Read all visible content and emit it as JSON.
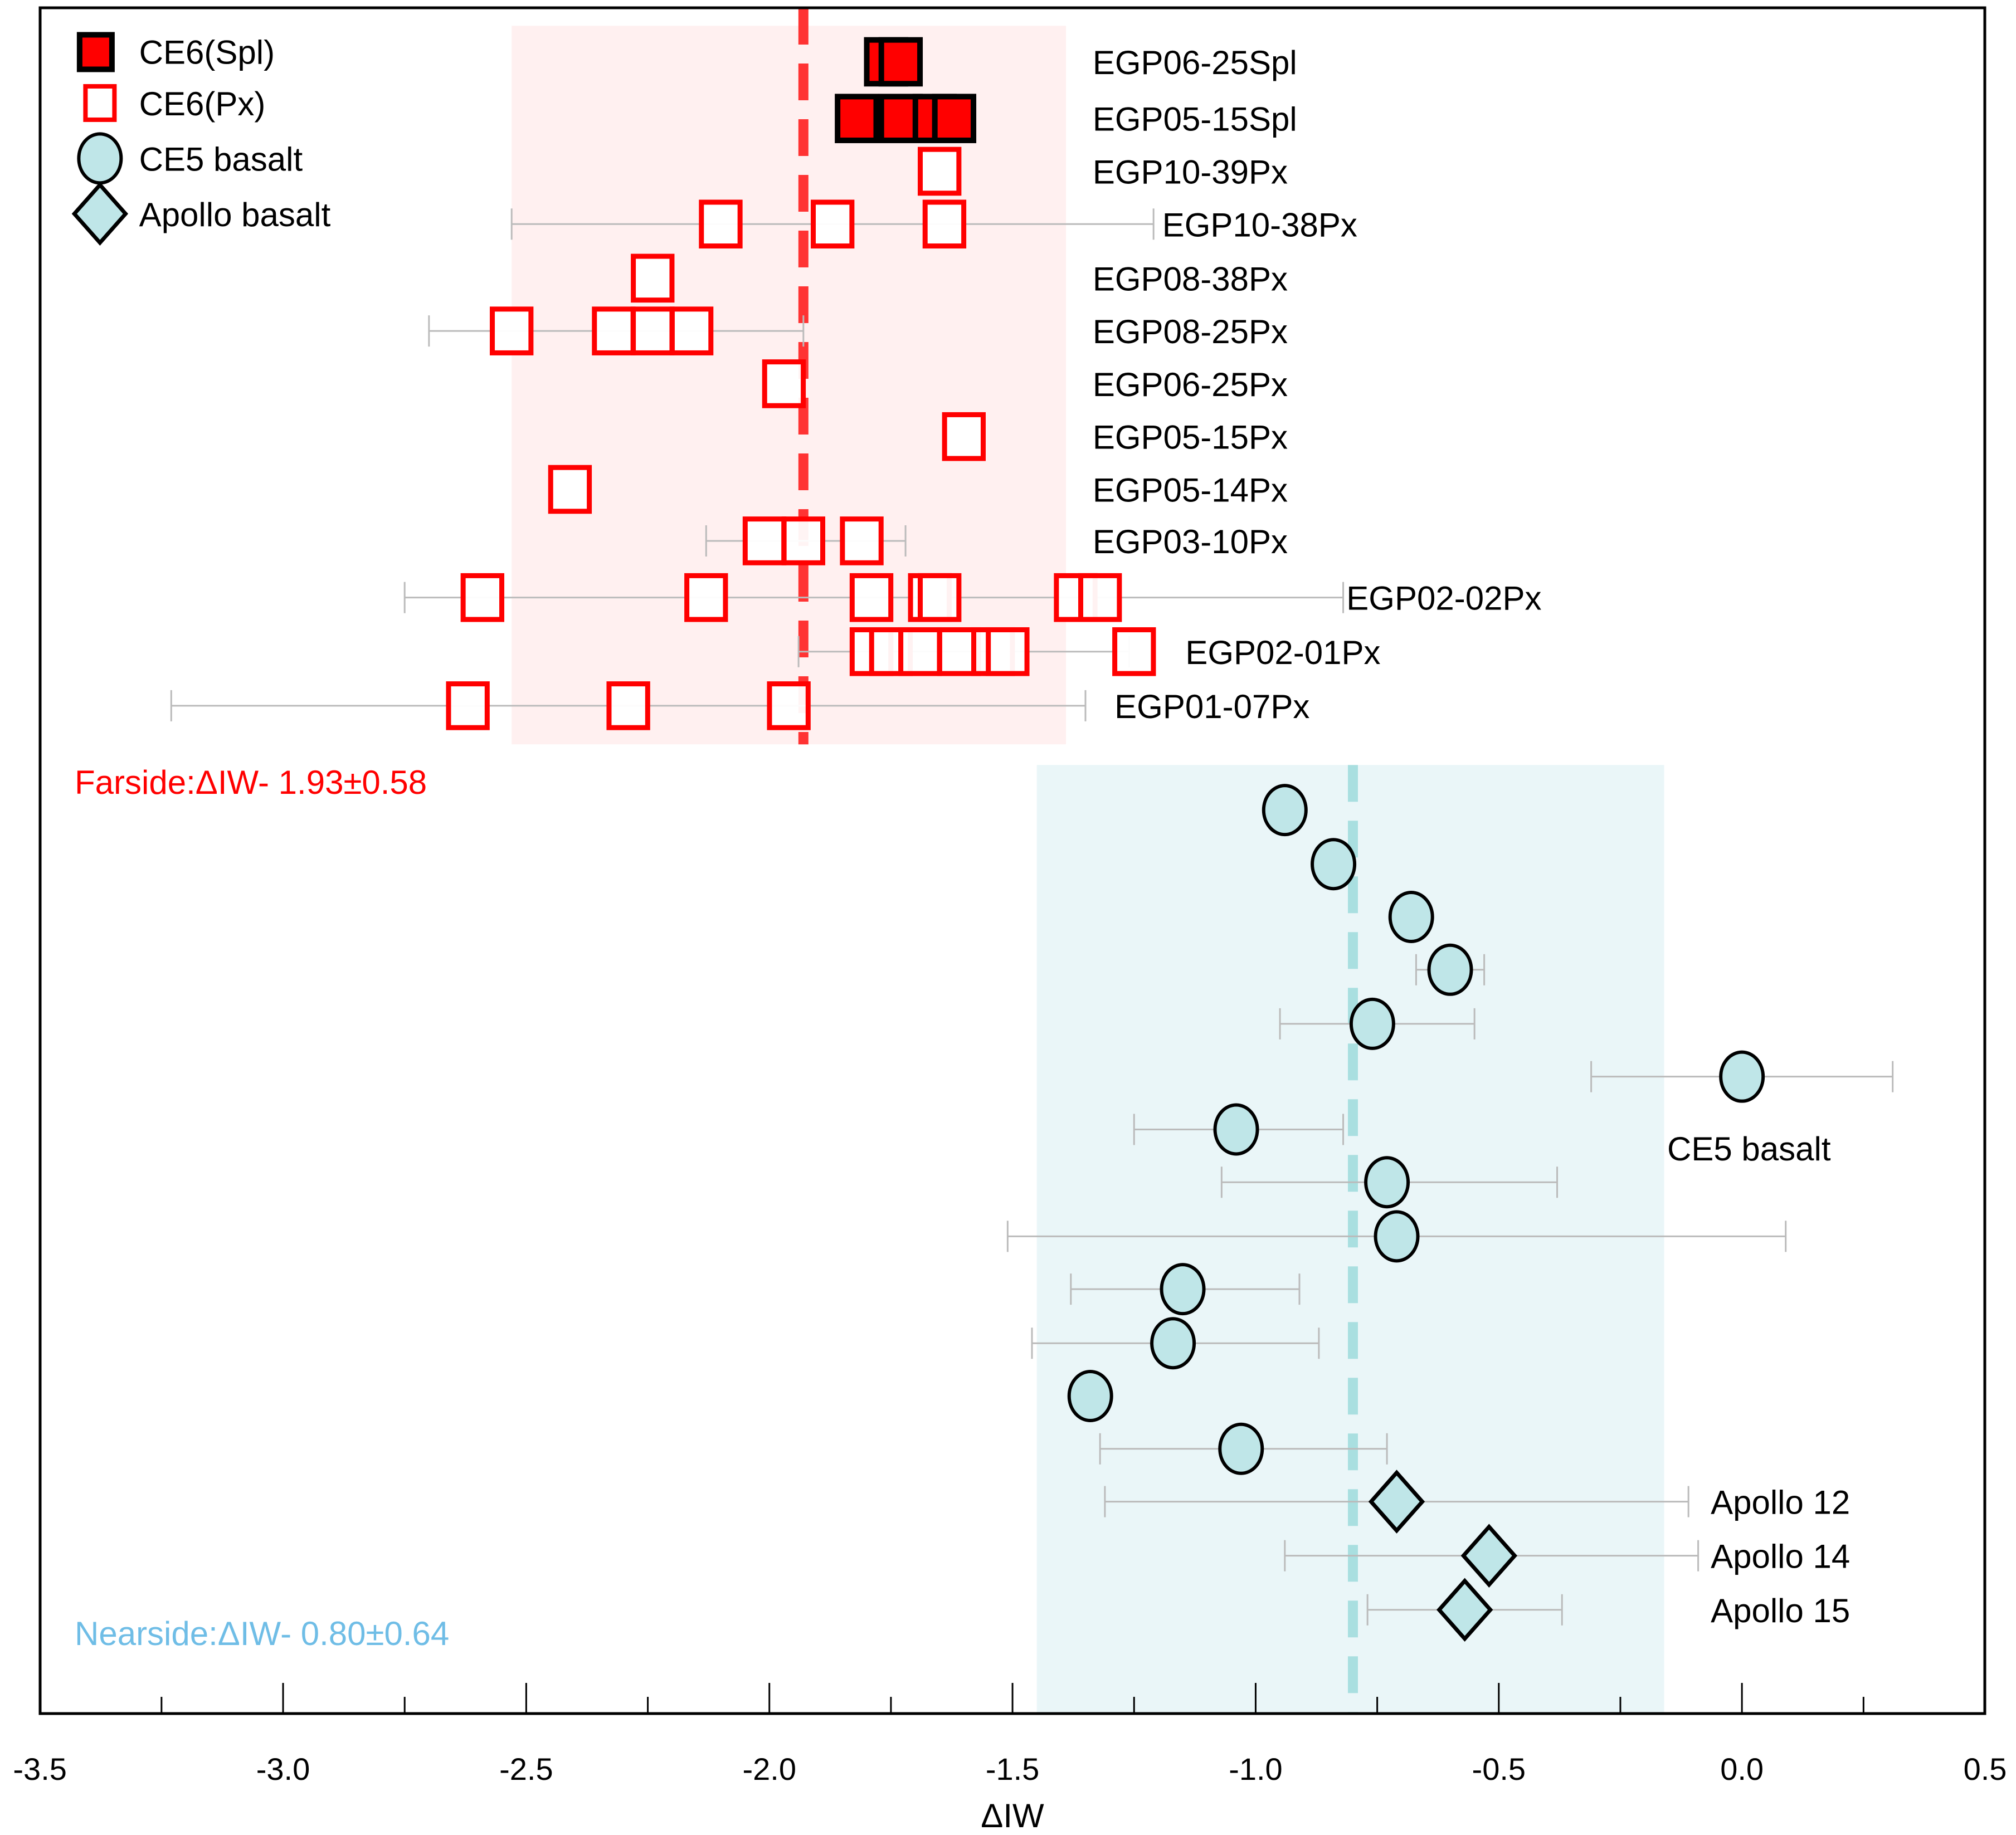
{
  "chart_data": {
    "type": "scatter",
    "title": "",
    "xlabel": "ΔIW",
    "ylabel": "",
    "xlim": [
      -3.5,
      0.5
    ],
    "x_ticks": [
      "-3.5",
      "-3.0",
      "-2.5",
      "-2.0",
      "-1.5",
      "-1.0",
      "-0.5",
      "0.0",
      "0.5"
    ],
    "x_tick_values": [
      -3.5,
      -3.0,
      -2.5,
      -2.0,
      -1.5,
      -1.0,
      -0.5,
      0.0,
      0.5
    ],
    "grid": false,
    "legend_position": "top-left",
    "legend": [
      {
        "label": "CE6(Spl)",
        "marker": "square-filled"
      },
      {
        "label": "CE6(Px)",
        "marker": "square-open"
      },
      {
        "label": "CE5 basalt",
        "marker": "circle"
      },
      {
        "label": "Apollo basalt",
        "marker": "diamond"
      }
    ],
    "colors": {
      "spl_fill": "#ff0000",
      "px_edge": "#ff0000",
      "basalt_fill": "#bfe6e8",
      "farside_band": "#fff0f0",
      "nearside_band": "#eaf6f8",
      "farside_mean_line": "#ff3333",
      "nearside_mean_line": "#a9dfe0",
      "farside_text": "#ff0000",
      "nearside_text": "#6fbde6",
      "errorbar": "#bbbbbb"
    },
    "farside": {
      "label": "Farside:ΔIW- 1.93±0.58",
      "mean": -1.93,
      "band": [
        -2.53,
        -1.39
      ]
    },
    "nearside": {
      "label": "Nearside:ΔIW- 0.80±0.64",
      "mean": -0.8,
      "band": [
        -1.45,
        -0.16
      ]
    },
    "ce6_series": [
      {
        "name": "EGP06-25Spl",
        "kind": "spl",
        "values": [
          -1.76,
          -1.73
        ],
        "err": [
          -1.79,
          -1.7
        ]
      },
      {
        "name": "EGP05-15Spl",
        "kind": "spl",
        "values": [
          -1.82,
          -1.73,
          -1.66,
          -1.62
        ],
        "err": [
          -1.84,
          -1.6
        ]
      },
      {
        "name": "EGP10-39Px",
        "kind": "px",
        "values": [
          -1.65
        ],
        "err": null
      },
      {
        "name": "EGP10-38Px",
        "kind": "px",
        "values": [
          -2.1,
          -1.87,
          -1.64
        ],
        "err": [
          -2.53,
          -1.21
        ]
      },
      {
        "name": "EGP08-38Px",
        "kind": "px",
        "values": [
          -2.24
        ],
        "err": null
      },
      {
        "name": "EGP08-25Px",
        "kind": "px",
        "values": [
          -2.53,
          -2.32,
          -2.24,
          -2.16
        ],
        "err": [
          -2.7,
          -1.93
        ]
      },
      {
        "name": "EGP06-25Px",
        "kind": "px",
        "values": [
          -1.97
        ],
        "err": null
      },
      {
        "name": "EGP05-15Px",
        "kind": "px",
        "values": [
          -1.6
        ],
        "err": null
      },
      {
        "name": "EGP05-14Px",
        "kind": "px",
        "values": [
          -2.41
        ],
        "err": null
      },
      {
        "name": "EGP03-10Px",
        "kind": "px",
        "values": [
          -2.01,
          -1.93,
          -1.81
        ],
        "err": [
          -2.13,
          -1.72
        ]
      },
      {
        "name": "EGP02-02Px",
        "kind": "px",
        "values": [
          -2.59,
          -2.13,
          -1.79,
          -1.67,
          -1.65,
          -1.37,
          -1.32
        ],
        "err": [
          -2.75,
          -0.82
        ]
      },
      {
        "name": "EGP02-01Px",
        "kind": "px",
        "values": [
          -1.79,
          -1.75,
          -1.69,
          -1.61,
          -1.54,
          -1.51,
          -1.25
        ],
        "err": [
          -1.94,
          -1.26
        ]
      },
      {
        "name": "EGP01-07Px",
        "kind": "px",
        "values": [
          -2.62,
          -2.29,
          -1.96
        ],
        "err": [
          -3.23,
          -1.35
        ]
      }
    ],
    "ce5_basalt": [
      {
        "value": -0.94,
        "err": [
          -0.96,
          -0.92
        ]
      },
      {
        "value": -0.84,
        "err": [
          -0.86,
          -0.82
        ]
      },
      {
        "value": -0.68,
        "err": [
          -0.7,
          -0.66
        ]
      },
      {
        "value": -0.6,
        "err": [
          -0.67,
          -0.53
        ]
      },
      {
        "value": -0.76,
        "err": [
          -0.95,
          -0.55
        ]
      },
      {
        "value": 0.0,
        "err": [
          -0.31,
          0.31
        ]
      },
      {
        "value": -1.04,
        "err": [
          -1.25,
          -0.82
        ]
      },
      {
        "value": -0.73,
        "err": [
          -1.07,
          -0.38
        ]
      },
      {
        "value": -0.71,
        "err": [
          -1.51,
          0.09
        ]
      },
      {
        "value": -1.15,
        "err": [
          -1.38,
          -0.91
        ]
      },
      {
        "value": -1.17,
        "err": [
          -1.46,
          -0.87
        ]
      },
      {
        "value": -1.34,
        "err": null
      },
      {
        "value": -1.03,
        "err": [
          -1.32,
          -0.73
        ]
      }
    ],
    "ce5_label": "CE5 basalt",
    "apollo_basalt": [
      {
        "name": "Apollo 12",
        "value": -0.71,
        "err": [
          -1.31,
          -0.11
        ]
      },
      {
        "name": "Apollo 14",
        "value": -0.52,
        "err": [
          -0.94,
          -0.09
        ]
      },
      {
        "name": "Apollo 15",
        "value": -0.57,
        "err": [
          -0.77,
          -0.37
        ]
      }
    ]
  }
}
